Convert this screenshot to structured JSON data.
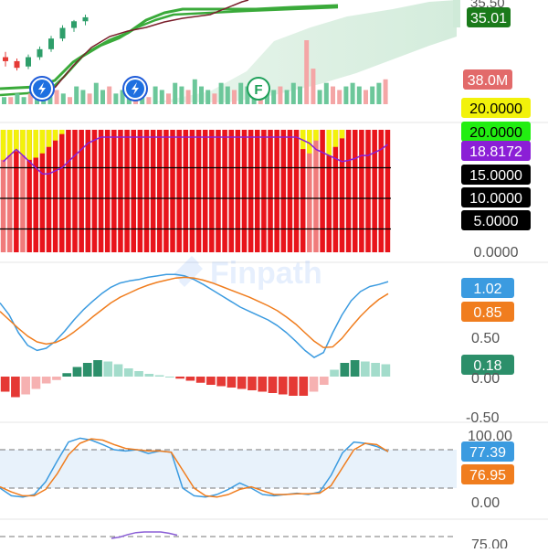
{
  "app": {
    "watermark": "Finpath"
  },
  "colors": {
    "up": "#2e9e6a",
    "down": "#e53935",
    "volume_up": "#6cc79a",
    "volume_down": "#f4a6a6",
    "ma_green": "#3aaa3a",
    "ma_dark": "#7a1f2b",
    "cloud": "#cfead8",
    "adx_red": "#e8141b",
    "adx_yellow": "#f2f20a",
    "adx_lightred": "#f07b7b",
    "di_purple": "#8b1fd6",
    "macd_blue": "#3b9be0",
    "macd_orange": "#f07d1e",
    "hist_up_dark": "#2c8f6a",
    "hist_up_light": "#a3dccb",
    "hist_down_dark": "#e53935",
    "hist_down_light": "#f6b1b1",
    "stoch_fill": "#e8f2fb",
    "rsi_purple": "#8b5fd6"
  },
  "event_icons": [
    {
      "kind": "lightning",
      "label": ""
    },
    {
      "kind": "lightning",
      "label": ""
    },
    {
      "kind": "letter",
      "label": "F"
    }
  ],
  "chart_data": [
    {
      "type": "candlestick",
      "panel": "price",
      "price_badges": [
        {
          "label": "35.01",
          "bg": "#1a7a1a",
          "fg": "#ffffff"
        },
        {
          "label": "38.0M",
          "bg": "#e26a6a",
          "fg": "#ffffff"
        }
      ],
      "candles": [
        {
          "o": 31.2,
          "h": 31.6,
          "l": 30.5,
          "c": 30.9
        },
        {
          "o": 30.9,
          "h": 31.1,
          "l": 30.2,
          "c": 30.4
        },
        {
          "o": 30.5,
          "h": 31.4,
          "l": 30.3,
          "c": 31.2
        },
        {
          "o": 31.2,
          "h": 32.0,
          "l": 31.0,
          "c": 31.8
        },
        {
          "o": 31.8,
          "h": 32.8,
          "l": 31.6,
          "c": 32.6
        },
        {
          "o": 32.6,
          "h": 33.6,
          "l": 32.4,
          "c": 33.4
        },
        {
          "o": 33.4,
          "h": 34.0,
          "l": 33.1,
          "c": 33.9
        },
        {
          "o": 33.9,
          "h": 34.4,
          "l": 33.6,
          "c": 34.2
        }
      ],
      "volume": {
        "label": "38.0M",
        "values": [
          2,
          2,
          3,
          2,
          3,
          4,
          5,
          6,
          4,
          3,
          2,
          5,
          4,
          3,
          6,
          4,
          5,
          3,
          4,
          6,
          3,
          4,
          2,
          5,
          4,
          3,
          6,
          5,
          4,
          7,
          5,
          4,
          3,
          6,
          5,
          4,
          6,
          5,
          4,
          6,
          5,
          4,
          5,
          4,
          6,
          5,
          18,
          10,
          4,
          6,
          5,
          4,
          5,
          6,
          5,
          4,
          5,
          6,
          7
        ],
        "up": [
          1,
          0,
          1,
          1,
          0,
          1,
          1,
          1,
          0,
          1,
          0,
          1,
          1,
          0,
          1,
          1,
          0,
          1,
          1,
          1,
          0,
          1,
          0,
          1,
          1,
          0,
          1,
          1,
          0,
          1,
          1,
          1,
          0,
          1,
          1,
          0,
          1,
          1,
          1,
          0,
          1,
          1,
          0,
          1,
          1,
          1,
          0,
          0,
          1,
          1,
          0,
          0,
          1,
          1,
          1,
          0,
          1,
          1,
          0
        ]
      }
    },
    {
      "type": "bar",
      "panel": "adx_stack",
      "levels": [
        {
          "label": "20.0000",
          "bg": "#f2f20a",
          "fg": "#000000"
        },
        {
          "label": "20.0000",
          "bg": "#22ee11",
          "fg": "#000000"
        },
        {
          "label": "18.8172",
          "bg": "#8b1fd6",
          "fg": "#ffffff"
        },
        {
          "label": "15.0000",
          "bg": "#000000",
          "fg": "#ffffff"
        },
        {
          "label": "10.0000",
          "bg": "#000000",
          "fg": "#ffffff"
        },
        {
          "label": "5.0000",
          "bg": "#000000",
          "fg": "#ffffff"
        },
        {
          "label": "0.0000",
          "bg": "transparent",
          "fg": "#555555"
        }
      ],
      "yellow_top": [
        14,
        12,
        10,
        12,
        14,
        13,
        11,
        8,
        5,
        2,
        0,
        0,
        0,
        0,
        0,
        0,
        0,
        0,
        0,
        0,
        0,
        0,
        0,
        0,
        0,
        0,
        0,
        0,
        0,
        0,
        0,
        0,
        0,
        0,
        0,
        0,
        0,
        0,
        0,
        0,
        0,
        0,
        0,
        0,
        0,
        0,
        9,
        11,
        5,
        0,
        12,
        8,
        4,
        0,
        0,
        0,
        0,
        0,
        0,
        0
      ],
      "di_line": [
        16,
        17,
        18,
        17,
        16,
        15,
        14,
        14,
        14.5,
        15,
        16,
        17,
        18,
        19,
        19.5,
        20,
        20,
        20,
        20,
        20,
        20,
        20,
        20,
        20,
        20,
        20,
        20,
        20,
        20,
        20,
        20,
        20,
        20,
        20,
        20,
        20,
        20,
        20,
        20,
        20,
        20,
        20,
        20,
        20,
        20,
        20,
        19.5,
        19,
        18,
        17.5,
        17,
        16.5,
        16,
        16.2,
        16.5,
        17,
        17,
        17.5,
        18,
        18.8
      ],
      "hline_values": [
        15,
        10,
        5
      ]
    },
    {
      "type": "line",
      "panel": "macd",
      "tick_labels": [
        "0.50",
        "0.00",
        "-0.50"
      ],
      "series": [
        {
          "label": "1.02",
          "color": "#3b9be0",
          "values": [
            0.72,
            0.55,
            0.3,
            0.12,
            0.05,
            0.08,
            0.18,
            0.32,
            0.48,
            0.62,
            0.74,
            0.85,
            0.94,
            1.0,
            1.03,
            1.05,
            1.08,
            1.1,
            1.12,
            1.12,
            1.1,
            1.05,
            0.98,
            0.9,
            0.82,
            0.74,
            0.66,
            0.6,
            0.54,
            0.48,
            0.4,
            0.3,
            0.18,
            0.05,
            -0.05,
            0.02,
            0.3,
            0.55,
            0.75,
            0.88,
            0.95,
            0.98,
            1.02
          ]
        },
        {
          "label": "0.85",
          "color": "#f07d1e",
          "values": [
            0.6,
            0.48,
            0.36,
            0.25,
            0.17,
            0.14,
            0.16,
            0.22,
            0.31,
            0.41,
            0.52,
            0.62,
            0.72,
            0.8,
            0.86,
            0.92,
            0.97,
            1.01,
            1.04,
            1.07,
            1.08,
            1.07,
            1.04,
            1.0,
            0.95,
            0.9,
            0.85,
            0.8,
            0.74,
            0.68,
            0.61,
            0.52,
            0.42,
            0.3,
            0.18,
            0.09,
            0.1,
            0.22,
            0.38,
            0.53,
            0.66,
            0.77,
            0.85
          ]
        }
      ],
      "histogram": {
        "label": "0.18",
        "values": [
          -0.22,
          -0.3,
          -0.26,
          -0.18,
          -0.1,
          -0.05,
          0.05,
          0.14,
          0.2,
          0.24,
          0.22,
          0.18,
          0.12,
          0.08,
          0.04,
          0.02,
          0.0,
          -0.03,
          -0.06,
          -0.09,
          -0.12,
          -0.14,
          -0.16,
          -0.18,
          -0.2,
          -0.22,
          -0.24,
          -0.26,
          -0.28,
          -0.28,
          -0.22,
          -0.12,
          0.1,
          0.2,
          0.24,
          0.22,
          0.2,
          0.18
        ]
      }
    },
    {
      "type": "line",
      "panel": "stochastic",
      "tick_labels": [
        "100.00",
        "0.00"
      ],
      "series": [
        {
          "label": "77.39",
          "color": "#3b9be0",
          "values": [
            20,
            8,
            6,
            10,
            30,
            62,
            92,
            98,
            95,
            88,
            80,
            78,
            80,
            74,
            78,
            76,
            20,
            8,
            6,
            10,
            18,
            28,
            20,
            10,
            8,
            10,
            12,
            10,
            14,
            40,
            75,
            92,
            90,
            85,
            77
          ]
        },
        {
          "label": "76.95",
          "color": "#f07d1e",
          "values": [
            22,
            14,
            8,
            8,
            18,
            42,
            72,
            90,
            97,
            95,
            88,
            82,
            80,
            78,
            78,
            76,
            48,
            20,
            8,
            6,
            10,
            18,
            22,
            16,
            10,
            10,
            11,
            11,
            12,
            24,
            52,
            80,
            90,
            88,
            77
          ]
        }
      ],
      "band_values": [
        80,
        20
      ]
    },
    {
      "type": "line",
      "panel": "rsi",
      "tick_labels": [
        "75.00"
      ],
      "series": [
        {
          "label": "",
          "color": "#8b5fd6",
          "values": [
            60,
            64,
            72,
            78,
            80,
            80,
            80,
            76,
            70
          ]
        }
      ]
    }
  ]
}
